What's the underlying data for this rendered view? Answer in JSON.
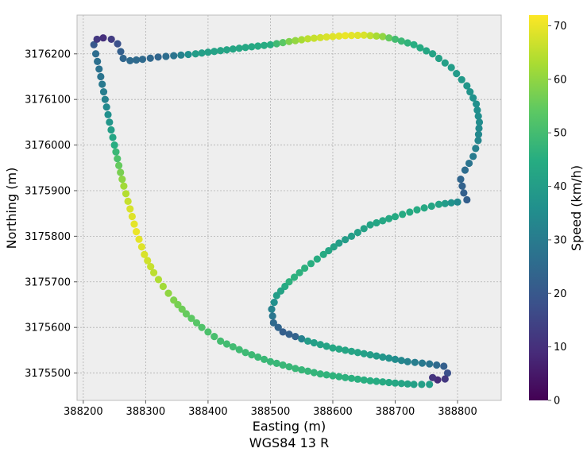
{
  "chart_data": {
    "type": "scatter",
    "title": "",
    "xlabel": "Easting (m)",
    "xlabel_sub": "WGS84 13 R",
    "ylabel": "Northing (m)",
    "xlim": [
      388190,
      388870
    ],
    "ylim": [
      3175440,
      3176285
    ],
    "xticks": [
      388200,
      388300,
      388400,
      388500,
      388600,
      388700,
      388800
    ],
    "yticks": [
      3175500,
      3175600,
      3175700,
      3175800,
      3175900,
      3176000,
      3176100,
      3176200
    ],
    "grid": true,
    "colorbar": {
      "label": "Speed (km/h)",
      "colormap": "viridis",
      "range": [
        0,
        72
      ],
      "ticks": [
        0,
        10,
        20,
        30,
        40,
        50,
        60,
        70
      ]
    },
    "path_points": [
      [
        388755,
        3175475,
        40
      ],
      [
        388730,
        3175475,
        41
      ],
      [
        388700,
        3175478,
        43
      ],
      [
        388660,
        3175483,
        45
      ],
      [
        388620,
        3175490,
        46
      ],
      [
        388580,
        3175498,
        47
      ],
      [
        388540,
        3175510,
        48
      ],
      [
        388500,
        3175525,
        48
      ],
      [
        388460,
        3175545,
        49
      ],
      [
        388420,
        3175570,
        50
      ],
      [
        388390,
        3175600,
        52
      ],
      [
        388365,
        3175630,
        55
      ],
      [
        388345,
        3175660,
        58
      ],
      [
        388328,
        3175690,
        62
      ],
      [
        388313,
        3175720,
        65
      ],
      [
        388298,
        3175760,
        68
      ],
      [
        388285,
        3175810,
        70
      ],
      [
        388275,
        3175860,
        68
      ],
      [
        388265,
        3175910,
        62
      ],
      [
        388257,
        3175955,
        55
      ],
      [
        388250,
        3176000,
        45
      ],
      [
        388242,
        3176050,
        38
      ],
      [
        388235,
        3176100,
        32
      ],
      [
        388228,
        3176150,
        28
      ],
      [
        388220,
        3176200,
        26
      ],
      [
        388217,
        3176220,
        20
      ],
      [
        388222,
        3176232,
        12
      ],
      [
        388232,
        3176235,
        10
      ],
      [
        388245,
        3176232,
        13
      ],
      [
        388255,
        3176222,
        18
      ],
      [
        388260,
        3176205,
        22
      ],
      [
        388264,
        3176190,
        24
      ],
      [
        388275,
        3176185,
        25
      ],
      [
        388295,
        3176188,
        25
      ],
      [
        388320,
        3176193,
        24
      ],
      [
        388345,
        3176196,
        28
      ],
      [
        388380,
        3176200,
        40
      ],
      [
        388420,
        3176207,
        42
      ],
      [
        388460,
        3176214,
        43
      ],
      [
        388500,
        3176220,
        45
      ],
      [
        388530,
        3176227,
        58
      ],
      [
        388560,
        3176233,
        65
      ],
      [
        388590,
        3176237,
        68
      ],
      [
        388620,
        3176240,
        70
      ],
      [
        388650,
        3176241,
        68
      ],
      [
        388680,
        3176238,
        60
      ],
      [
        388700,
        3176232,
        50
      ],
      [
        388730,
        3176220,
        45
      ],
      [
        388760,
        3176200,
        42
      ],
      [
        388790,
        3176170,
        40
      ],
      [
        388815,
        3176130,
        38
      ],
      [
        388830,
        3176090,
        36
      ],
      [
        388835,
        3176050,
        35
      ],
      [
        388833,
        3176010,
        33
      ],
      [
        388825,
        3175975,
        30
      ],
      [
        388812,
        3175945,
        26
      ],
      [
        388805,
        3175925,
        24
      ],
      [
        388810,
        3175895,
        22
      ],
      [
        388815,
        3175880,
        22
      ],
      [
        388800,
        3175875,
        34
      ],
      [
        388770,
        3175870,
        42
      ],
      [
        388735,
        3175858,
        44
      ],
      [
        388700,
        3175843,
        44
      ],
      [
        388660,
        3175825,
        42
      ],
      [
        388630,
        3175800,
        40
      ],
      [
        388610,
        3175785,
        40
      ],
      [
        388585,
        3175760,
        44
      ],
      [
        388555,
        3175730,
        46
      ],
      [
        388530,
        3175700,
        46
      ],
      [
        388510,
        3175670,
        40
      ],
      [
        388502,
        3175640,
        32
      ],
      [
        388505,
        3175610,
        25
      ],
      [
        388520,
        3175590,
        22
      ],
      [
        388540,
        3175580,
        23
      ],
      [
        388560,
        3175570,
        40
      ],
      [
        388600,
        3175555,
        43
      ],
      [
        388640,
        3175545,
        42
      ],
      [
        388680,
        3175535,
        38
      ],
      [
        388720,
        3175525,
        32
      ],
      [
        388755,
        3175520,
        28
      ],
      [
        388778,
        3175515,
        22
      ],
      [
        388784,
        3175500,
        18
      ],
      [
        388780,
        3175487,
        12
      ],
      [
        388768,
        3175485,
        9
      ],
      [
        388760,
        3175490,
        11
      ]
    ]
  }
}
